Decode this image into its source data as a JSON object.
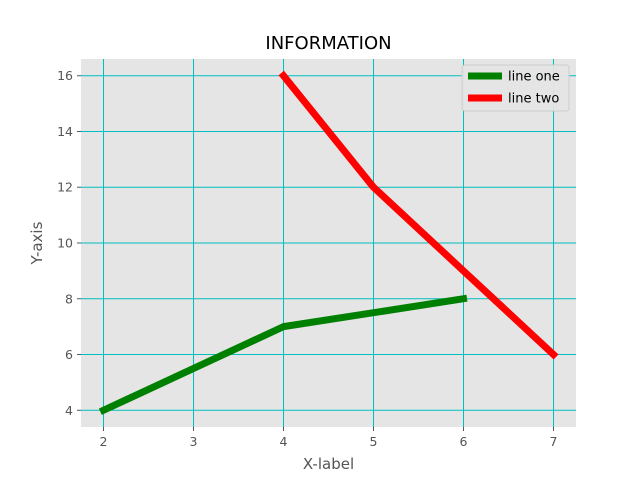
{
  "chart_data": {
    "type": "line",
    "title": "INFORMATION",
    "xlabel": "X-label",
    "ylabel": "Y-axis",
    "xlim": [
      1.75,
      7.25
    ],
    "ylim": [
      3.4,
      16.6
    ],
    "xticks": [
      2,
      3,
      4,
      5,
      6,
      7
    ],
    "yticks": [
      4,
      6,
      8,
      10,
      12,
      14,
      16
    ],
    "grid": true,
    "grid_color": "#00bfbf",
    "background_color": "#e5e5e5",
    "legend_position": "top-right",
    "series": [
      {
        "name": "line one",
        "color": "#008000",
        "x": [
          2,
          4,
          6
        ],
        "y": [
          4,
          7,
          8
        ]
      },
      {
        "name": "line two",
        "color": "#ff0000",
        "x": [
          4,
          5,
          6,
          7
        ],
        "y": [
          16,
          12,
          9,
          6
        ]
      }
    ]
  }
}
